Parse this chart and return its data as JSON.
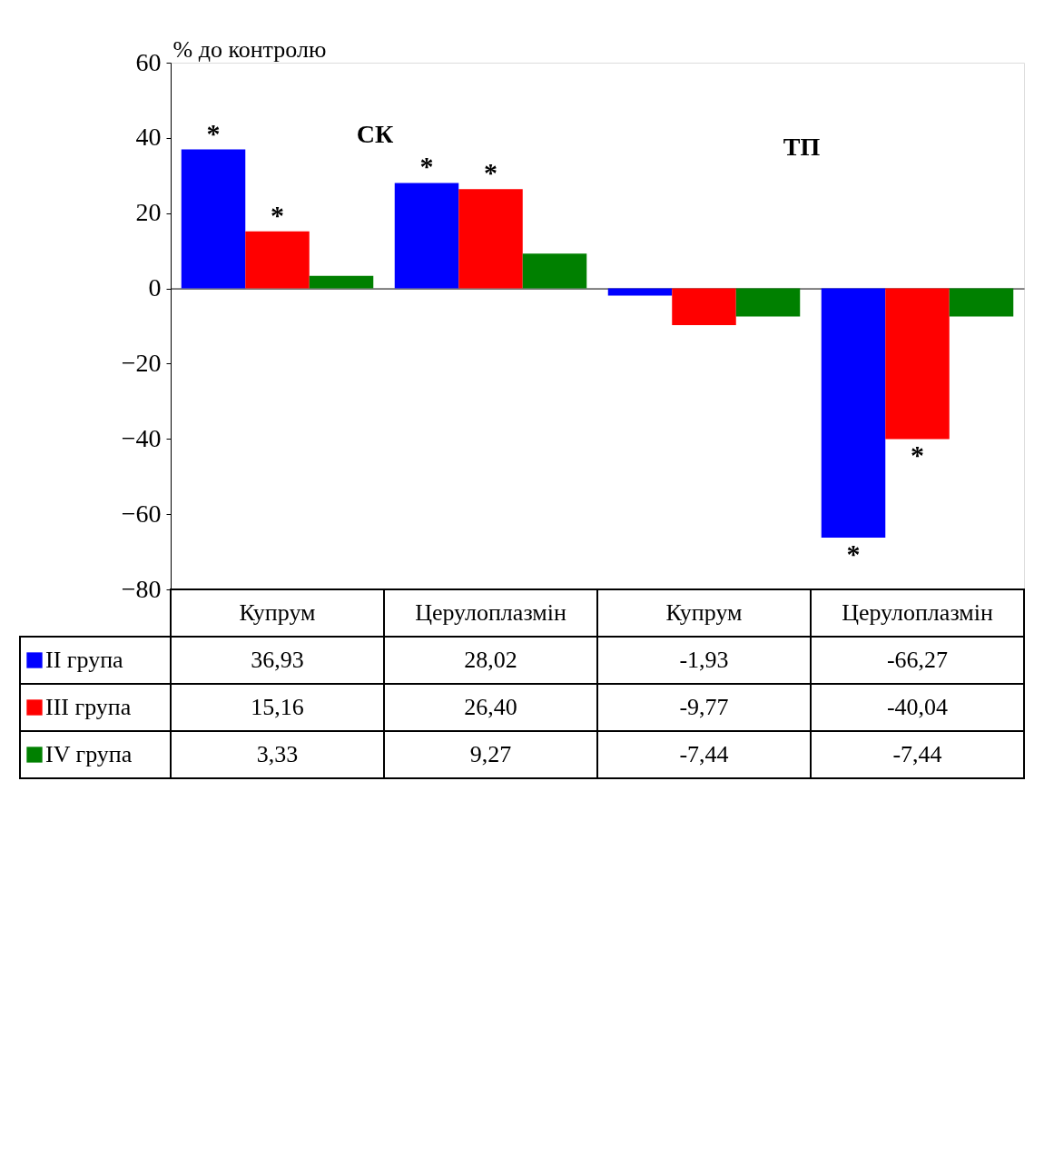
{
  "chart_data": {
    "type": "bar",
    "ylabel": "% до контролю",
    "categories": [
      "Купрум",
      "Церулоплазмін",
      "Купрум",
      "Церулоплазмін"
    ],
    "series": [
      {
        "name": "II група",
        "color": "#0000ff",
        "values": [
          36.93,
          28.02,
          -1.93,
          -66.27
        ],
        "value_labels": [
          "36,93",
          "28,02",
          "-1,93",
          "-66,27"
        ]
      },
      {
        "name": "III група",
        "color": "#ff0000",
        "values": [
          15.16,
          26.4,
          -9.77,
          -40.04
        ],
        "value_labels": [
          "15,16",
          "26,40",
          "-9,77",
          "-40,04"
        ]
      },
      {
        "name": "IV група",
        "color": "#008000",
        "values": [
          3.33,
          9.27,
          -7.44,
          -7.44
        ],
        "value_labels": [
          "3,33",
          "9,27",
          "-7,44",
          "-7,44"
        ]
      }
    ],
    "ylim": [
      -80,
      60
    ],
    "yticks": [
      -80,
      -60,
      -40,
      -20,
      0,
      20,
      40,
      60
    ],
    "annotations": [
      "СК",
      "ТП",
      {
        "text": "*",
        "y": 36.93
      },
      {
        "text": "*",
        "y": 15.16
      },
      {
        "text": "*",
        "y": 28.02
      },
      {
        "text": "*",
        "y": 26.4
      },
      {
        "text": "*",
        "y": -66.27
      },
      {
        "text": "*",
        "y": -40.04
      }
    ],
    "legend": "bottom"
  }
}
